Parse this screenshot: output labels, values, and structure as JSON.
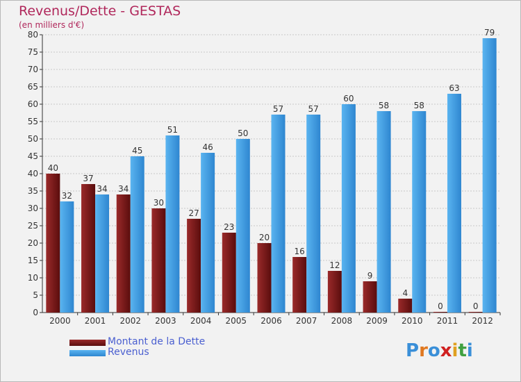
{
  "header": {
    "title": "Revenus/Dette - GESTAS",
    "subtitle": "(en milliers d'€)"
  },
  "chart_data": {
    "type": "bar",
    "categories": [
      "2000",
      "2001",
      "2002",
      "2003",
      "2004",
      "2005",
      "2006",
      "2007",
      "2008",
      "2009",
      "2010",
      "2011",
      "2012"
    ],
    "series": [
      {
        "name": "Montant de la Dette",
        "color": "#7a1a1a",
        "values": [
          40,
          37,
          34,
          30,
          27,
          23,
          20,
          16,
          12,
          9,
          4,
          0,
          0
        ]
      },
      {
        "name": "Revenus",
        "color": "#4aa3e8",
        "values": [
          32,
          34,
          45,
          51,
          46,
          50,
          57,
          57,
          60,
          58,
          58,
          63,
          79
        ]
      }
    ],
    "ylim": [
      0,
      80
    ],
    "yticks": [
      0,
      5,
      10,
      15,
      20,
      25,
      30,
      35,
      40,
      45,
      50,
      55,
      60,
      65,
      70,
      75,
      80
    ],
    "grid": true,
    "legend": "bottom-left"
  },
  "logo": {
    "text": "Proxiti"
  }
}
